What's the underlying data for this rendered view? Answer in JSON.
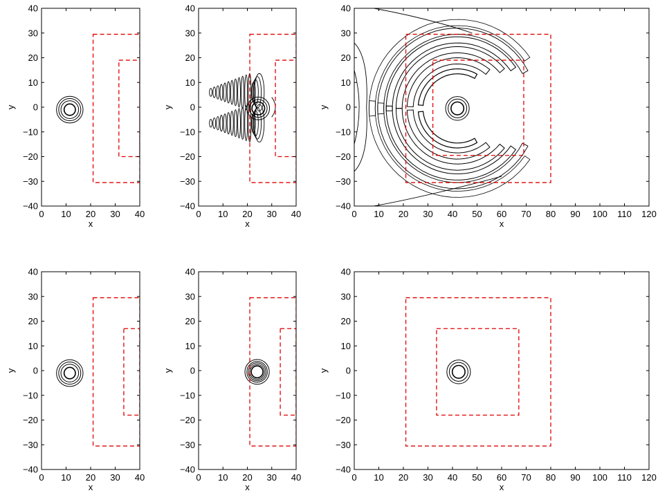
{
  "colors": {
    "axes": "#000000",
    "contour": "#000000",
    "box": "#e00000",
    "background": "#ffffff"
  },
  "chart_data": [
    {
      "type": "contour",
      "panel": "top-left",
      "xlabel": "x",
      "ylabel": "y",
      "xlim": [
        0,
        40
      ],
      "ylim": [
        -40,
        40
      ],
      "xticks": [
        0,
        10,
        20,
        30,
        40
      ],
      "yticks": [
        -40,
        -30,
        -20,
        -10,
        0,
        10,
        20,
        30,
        40
      ],
      "xtick_labels": [
        "0",
        "10",
        "20",
        "30",
        "40"
      ],
      "ytick_labels": [
        "−40",
        "−30",
        "−20",
        "−10",
        "0",
        "10",
        "20",
        "30",
        "40"
      ],
      "pulse": {
        "cx": 11.5,
        "cy": -1,
        "radii": [
          2.3,
          3.6,
          4.5,
          5.4
        ]
      },
      "boxes": [
        {
          "x0": 21,
          "x1": 40,
          "y0": -30.5,
          "y1": 29.5
        },
        {
          "x0": 31.5,
          "x1": 40,
          "y0": -20,
          "y1": 19
        }
      ],
      "ripples": "none"
    },
    {
      "type": "contour",
      "panel": "top-middle",
      "xlabel": "x",
      "ylabel": "y",
      "xlim": [
        0,
        40
      ],
      "ylim": [
        -40,
        40
      ],
      "xticks": [
        0,
        10,
        20,
        30,
        40
      ],
      "yticks": [
        -40,
        -30,
        -20,
        -10,
        0,
        10,
        20,
        30,
        40
      ],
      "xtick_labels": [
        "0",
        "10",
        "20",
        "30",
        "40"
      ],
      "ytick_labels": [
        "−40",
        "−30",
        "−20",
        "−10",
        "0",
        "10",
        "20",
        "30",
        "40"
      ],
      "pulse": {
        "cx": 24.5,
        "cy": -0.5,
        "radii": [
          2.6,
          3.6,
          4.6
        ]
      },
      "boxes": [
        {
          "x0": 21,
          "x1": 40,
          "y0": -30.5,
          "y1": 29.5
        },
        {
          "x0": 31.5,
          "x1": 40,
          "y0": -20,
          "y1": 19
        }
      ],
      "ripples": "comb"
    },
    {
      "type": "contour",
      "panel": "top-right",
      "xlabel": "x",
      "ylabel": "y",
      "xlim": [
        0,
        120
      ],
      "ylim": [
        -40,
        40
      ],
      "xticks": [
        0,
        10,
        20,
        30,
        40,
        50,
        60,
        70,
        80,
        90,
        100,
        110,
        120
      ],
      "yticks": [
        -40,
        -30,
        -20,
        -10,
        0,
        10,
        20,
        30,
        40
      ],
      "xtick_labels": [
        "0",
        "10",
        "20",
        "30",
        "40",
        "50",
        "60",
        "70",
        "80",
        "90",
        "100",
        "110",
        "120"
      ],
      "ytick_labels": [
        "−40",
        "−30",
        "−20",
        "−10",
        "0",
        "10",
        "20",
        "30",
        "40"
      ],
      "pulse": {
        "cx": 42,
        "cy": -0.5,
        "radii": [
          2.6,
          3.8,
          4.8
        ]
      },
      "boxes": [
        {
          "x0": 21,
          "x1": 80,
          "y0": -30.5,
          "y1": 29.5
        },
        {
          "x0": 32,
          "x1": 69,
          "y0": -19.5,
          "y1": 19
        }
      ],
      "ripples": "crescents"
    },
    {
      "type": "contour",
      "panel": "bottom-left",
      "xlabel": "x",
      "ylabel": "y",
      "xlim": [
        0,
        40
      ],
      "ylim": [
        -40,
        40
      ],
      "xticks": [
        0,
        10,
        20,
        30,
        40
      ],
      "yticks": [
        -40,
        -30,
        -20,
        -10,
        0,
        10,
        20,
        30,
        40
      ],
      "xtick_labels": [
        "0",
        "10",
        "20",
        "30",
        "40"
      ],
      "ytick_labels": [
        "−40",
        "−30",
        "−20",
        "−10",
        "0",
        "10",
        "20",
        "30",
        "40"
      ],
      "pulse": {
        "cx": 11.5,
        "cy": -1,
        "radii": [
          2.3,
          3.6,
          4.5,
          5.4
        ]
      },
      "boxes": [
        {
          "x0": 21,
          "x1": 40,
          "y0": -30.5,
          "y1": 29.5
        },
        {
          "x0": 33.5,
          "x1": 40,
          "y0": -18,
          "y1": 17
        }
      ],
      "ripples": "none"
    },
    {
      "type": "contour",
      "panel": "bottom-middle",
      "xlabel": "x",
      "ylabel": "y",
      "xlim": [
        0,
        40
      ],
      "ylim": [
        -40,
        40
      ],
      "xticks": [
        0,
        10,
        20,
        30,
        40
      ],
      "yticks": [
        -40,
        -30,
        -20,
        -10,
        0,
        10,
        20,
        30,
        40
      ],
      "xtick_labels": [
        "0",
        "10",
        "20",
        "30",
        "40"
      ],
      "ytick_labels": [
        "−40",
        "−30",
        "−20",
        "−10",
        "0",
        "10",
        "20",
        "30",
        "40"
      ],
      "pulse": {
        "cx": 24,
        "cy": -0.5,
        "radii": [
          2.4,
          3.0,
          3.6,
          4.2,
          5.0
        ]
      },
      "boxes": [
        {
          "x0": 21,
          "x1": 40,
          "y0": -30.5,
          "y1": 29.5
        },
        {
          "x0": 33.5,
          "x1": 40,
          "y0": -18,
          "y1": 17
        }
      ],
      "ripples": "none"
    },
    {
      "type": "contour",
      "panel": "bottom-right",
      "xlabel": "x",
      "ylabel": "y",
      "xlim": [
        0,
        120
      ],
      "ylim": [
        -40,
        40
      ],
      "xticks": [
        0,
        10,
        20,
        30,
        40,
        50,
        60,
        70,
        80,
        90,
        100,
        110,
        120
      ],
      "yticks": [
        -40,
        -30,
        -20,
        -10,
        0,
        10,
        20,
        30,
        40
      ],
      "xtick_labels": [
        "0",
        "10",
        "20",
        "30",
        "40",
        "50",
        "60",
        "70",
        "80",
        "90",
        "100",
        "110",
        "120"
      ],
      "ytick_labels": [
        "−40",
        "−30",
        "−20",
        "−10",
        "0",
        "10",
        "20",
        "30",
        "40"
      ],
      "pulse": {
        "cx": 42.5,
        "cy": -0.5,
        "radii": [
          2.6,
          3.8,
          4.8
        ]
      },
      "boxes": [
        {
          "x0": 21,
          "x1": 80,
          "y0": -30.5,
          "y1": 29.5
        },
        {
          "x0": 33.5,
          "x1": 67,
          "y0": -18,
          "y1": 17
        }
      ],
      "ripples": "none"
    }
  ]
}
